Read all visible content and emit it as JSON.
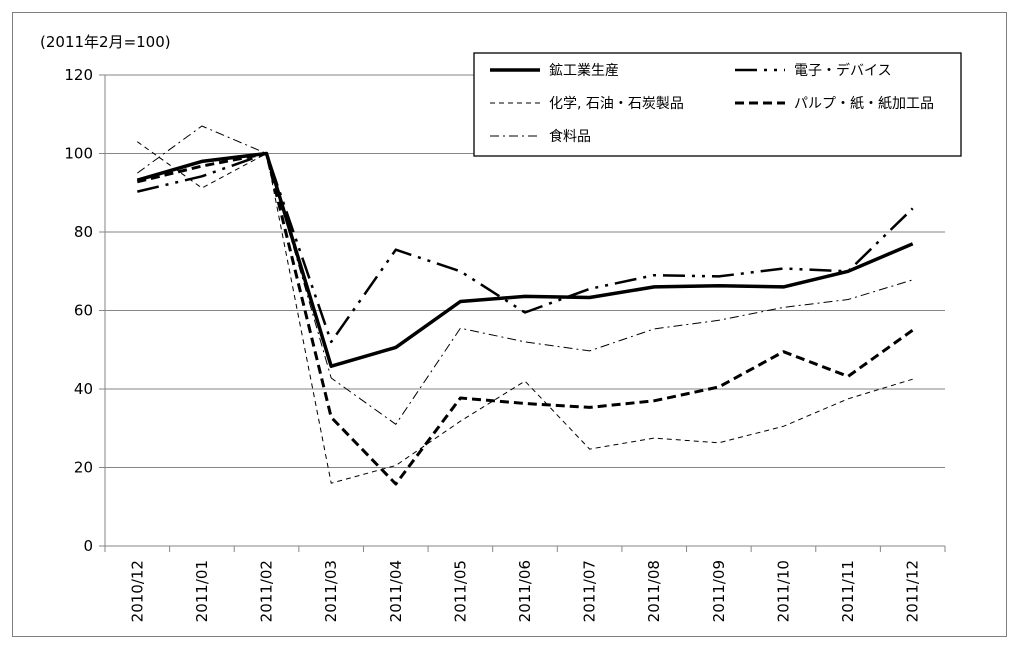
{
  "chart_data": {
    "type": "line",
    "unit_label": "(2011年2月=100)",
    "xlabel": "",
    "ylabel": "",
    "ylim": [
      0,
      120
    ],
    "yticks": [
      0,
      20,
      40,
      60,
      80,
      100,
      120
    ],
    "grid": "horizontal",
    "legend_position": "top-right",
    "categories": [
      "2010/12",
      "2011/01",
      "2011/02",
      "2011/03",
      "2011/04",
      "2011/05",
      "2011/06",
      "2011/07",
      "2011/08",
      "2011/09",
      "2011/10",
      "2011/11",
      "2011/12"
    ],
    "series": [
      {
        "name": "鉱工業生産",
        "style": "thick-solid",
        "values": [
          93.2,
          98.0,
          100,
          45.8,
          50.6,
          62.3,
          63.6,
          63.3,
          66.0,
          66.3,
          66.0,
          70.0,
          77.0
        ]
      },
      {
        "name": "電子・デバイス",
        "style": "long-dash-dot-dot",
        "values": [
          90.3,
          94.2,
          100,
          52.0,
          75.5,
          70.0,
          59.5,
          65.5,
          69.0,
          68.7,
          70.7,
          70.0,
          86.0
        ]
      },
      {
        "name": "化学, 石油・石炭製品",
        "style": "thin-dash",
        "values": [
          103.0,
          91.2,
          100,
          16.0,
          20.5,
          31.8,
          42.0,
          24.7,
          27.5,
          26.3,
          30.5,
          37.5,
          42.5
        ]
      },
      {
        "name": "パルプ・紙・紙加工品",
        "style": "thick-dash",
        "values": [
          92.8,
          96.8,
          100,
          32.8,
          15.8,
          37.7,
          36.3,
          35.3,
          37.0,
          40.5,
          49.5,
          43.2,
          55.0
        ]
      },
      {
        "name": "食料品",
        "style": "thin-dash-dot",
        "values": [
          95.0,
          107.0,
          100,
          42.8,
          31.0,
          55.5,
          52.0,
          49.7,
          55.3,
          57.5,
          60.8,
          62.8,
          67.8
        ]
      }
    ]
  }
}
